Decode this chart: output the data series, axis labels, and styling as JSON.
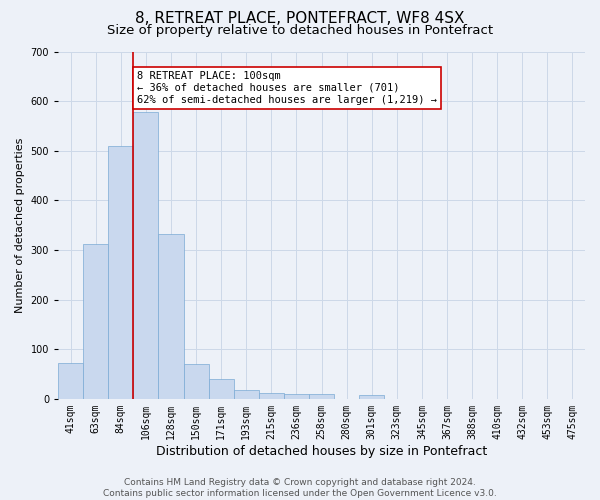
{
  "title": "8, RETREAT PLACE, PONTEFRACT, WF8 4SX",
  "subtitle": "Size of property relative to detached houses in Pontefract",
  "xlabel": "Distribution of detached houses by size in Pontefract",
  "ylabel": "Number of detached properties",
  "bar_labels": [
    "41sqm",
    "63sqm",
    "84sqm",
    "106sqm",
    "128sqm",
    "150sqm",
    "171sqm",
    "193sqm",
    "215sqm",
    "236sqm",
    "258sqm",
    "280sqm",
    "301sqm",
    "323sqm",
    "345sqm",
    "367sqm",
    "388sqm",
    "410sqm",
    "432sqm",
    "453sqm",
    "475sqm"
  ],
  "bar_values": [
    72,
    312,
    510,
    578,
    332,
    70,
    40,
    18,
    12,
    10,
    10,
    0,
    8,
    0,
    0,
    0,
    0,
    0,
    0,
    0,
    0
  ],
  "bar_color": "#c9d8ee",
  "bar_edge_color": "#7aaad4",
  "vline_color": "#cc0000",
  "annotation_text": "8 RETREAT PLACE: 100sqm\n← 36% of detached houses are smaller (701)\n62% of semi-detached houses are larger (1,219) →",
  "annotation_box_color": "#ffffff",
  "annotation_box_edge_color": "#cc0000",
  "ylim": [
    0,
    700
  ],
  "yticks": [
    0,
    100,
    200,
    300,
    400,
    500,
    600,
    700
  ],
  "grid_color": "#cdd8e8",
  "footer_text": "Contains HM Land Registry data © Crown copyright and database right 2024.\nContains public sector information licensed under the Open Government Licence v3.0.",
  "bg_color": "#edf1f8",
  "title_fontsize": 11,
  "subtitle_fontsize": 9.5,
  "xlabel_fontsize": 9,
  "ylabel_fontsize": 8,
  "tick_fontsize": 7,
  "footer_fontsize": 6.5,
  "annotation_fontsize": 7.5
}
